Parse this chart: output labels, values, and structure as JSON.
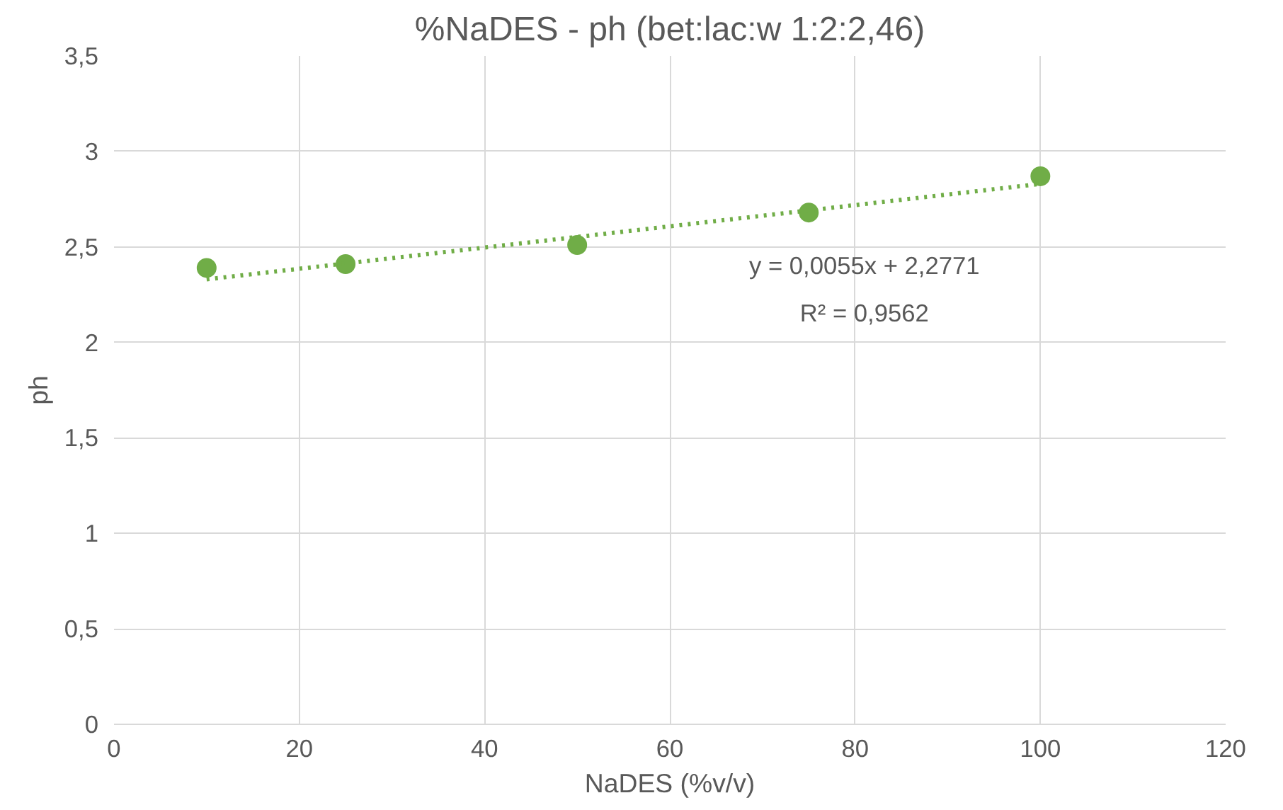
{
  "chart_data": {
    "type": "scatter",
    "title": "%NaDES - ph (bet:lac:w 1:2:2,46)",
    "xlabel": "NaDES (%v/v)",
    "ylabel": "ph",
    "x": [
      10,
      25,
      50,
      75,
      100
    ],
    "series": [
      {
        "color": "#70ad47",
        "values": [
          2.39,
          2.41,
          2.51,
          2.68,
          2.87
        ]
      },
      {
        "type": "line",
        "x": [
          10,
          100
        ],
        "color": "#70ad47",
        "values": [
          2.33,
          2.83
        ],
        "line_style": "dotted",
        "marker": "none"
      }
    ],
    "xlim": [
      0,
      120
    ],
    "xticks": [
      0,
      20,
      40,
      60,
      80,
      100,
      120
    ],
    "ylim": [
      0,
      3.5
    ],
    "yticks": [
      0,
      {
        "value": 0.5,
        "label": "0,5"
      },
      1,
      {
        "value": 1.5,
        "label": "1,5"
      },
      2,
      {
        "value": 2.5,
        "label": "2,5"
      },
      3,
      {
        "value": 3.5,
        "label": "3,5"
      }
    ],
    "annotations": [
      "y = 0,0055x + 2,2771",
      "R² = 0,9562"
    ],
    "grid": true,
    "marker": "circle"
  }
}
